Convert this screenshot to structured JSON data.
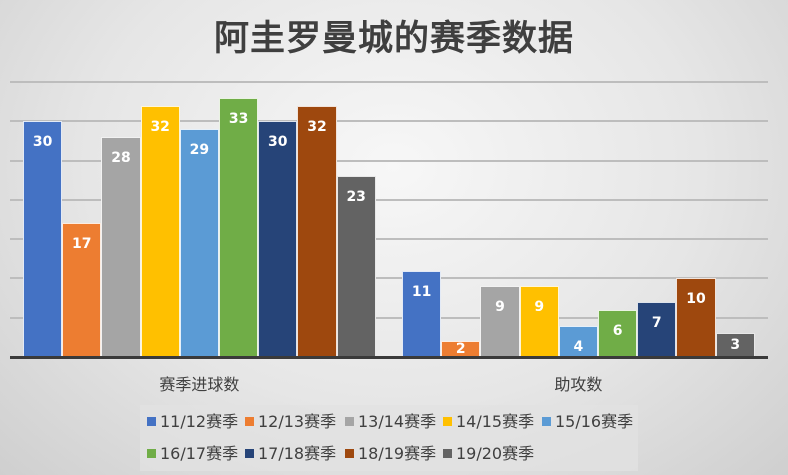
{
  "chart_data": {
    "type": "bar",
    "title": "阿圭罗曼城的赛季数据",
    "xlabel": "",
    "ylabel": "",
    "ylim": [
      0,
      35
    ],
    "grid": true,
    "y_axis_visible": false,
    "legend_position": "bottom",
    "categories": [
      "赛季进球数",
      "助攻数"
    ],
    "series": [
      {
        "name": "11/12赛季",
        "color": "#4472C4",
        "values": [
          30,
          11
        ]
      },
      {
        "name": "12/13赛季",
        "color": "#ED7D31",
        "values": [
          17,
          2
        ]
      },
      {
        "name": "13/14赛季",
        "color": "#A5A5A5",
        "values": [
          28,
          9
        ]
      },
      {
        "name": "14/15赛季",
        "color": "#FFC000",
        "values": [
          32,
          9
        ]
      },
      {
        "name": "15/16赛季",
        "color": "#5B9BD5",
        "values": [
          29,
          4
        ]
      },
      {
        "name": "16/17赛季",
        "color": "#70AD47",
        "values": [
          33,
          6
        ]
      },
      {
        "name": "17/18赛季",
        "color": "#264478",
        "values": [
          30,
          7
        ]
      },
      {
        "name": "18/19赛季",
        "color": "#9E480E",
        "values": [
          32,
          10
        ]
      },
      {
        "name": "19/20赛季",
        "color": "#636363",
        "values": [
          23,
          3
        ]
      }
    ]
  }
}
